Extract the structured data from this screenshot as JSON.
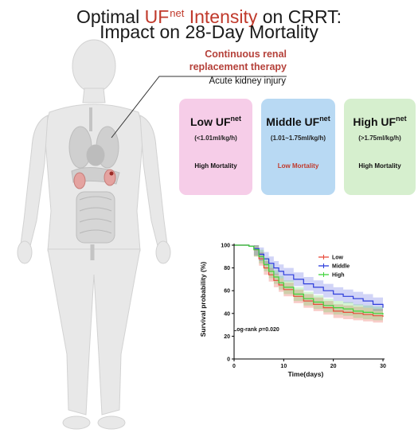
{
  "title": {
    "line1_pre": "Optimal ",
    "line1_uf": "UF",
    "line1_sup": "net",
    "line1_intensity": " Intensity",
    "line1_post": " on CRRT:",
    "line2": "Impact on 28-Day Mortality"
  },
  "annotation": {
    "crrt_line1": "Continuous renal",
    "crrt_line2": "replacement therapy",
    "aki": "Acute kidney injury"
  },
  "cards": [
    {
      "name": "Low UF",
      "sup": "net",
      "range": "(<1.01ml/kg/h)",
      "mortality": "High Mortality"
    },
    {
      "name": "Middle UF",
      "sup": "net",
      "range": "(1.01~1.75ml/kg/h)",
      "mortality": "Low Mortality"
    },
    {
      "name": "High UF",
      "sup": "net",
      "range": "(>1.75ml/kg/h)",
      "mortality": "High Mortality"
    }
  ],
  "colors": {
    "low": "#e74c3c",
    "middle": "#2d3ddb",
    "high": "#3fd33a"
  },
  "chart_data": {
    "type": "line",
    "xlabel": "Time(days)",
    "ylabel": "Survival probability (%)",
    "xlim": [
      0,
      30
    ],
    "ylim": [
      0,
      100
    ],
    "xticks": [
      0,
      10,
      20,
      30
    ],
    "yticks": [
      0,
      20,
      40,
      60,
      80,
      100
    ],
    "annotation": "Log-rank p=0.020",
    "legend_position": "top-right",
    "x": [
      0,
      2,
      3,
      4,
      5,
      6,
      7,
      8,
      9,
      10,
      12,
      14,
      16,
      18,
      20,
      22,
      24,
      26,
      28,
      30
    ],
    "series": [
      {
        "name": "Low",
        "values": [
          100,
          100,
          99,
          96,
          88,
          80,
          74,
          69,
          65,
          61,
          55,
          51,
          48,
          45,
          42,
          41,
          40,
          39,
          38,
          37
        ]
      },
      {
        "name": "Middle",
        "values": [
          100,
          100,
          99,
          97,
          92,
          88,
          84,
          80,
          77,
          74,
          70,
          66,
          63,
          60,
          57,
          55,
          53,
          51,
          48,
          45
        ]
      },
      {
        "name": "High",
        "values": [
          100,
          100,
          99,
          96,
          90,
          83,
          77,
          72,
          67,
          63,
          57,
          53,
          50,
          47,
          45,
          44,
          42,
          41,
          40,
          39
        ]
      }
    ]
  }
}
